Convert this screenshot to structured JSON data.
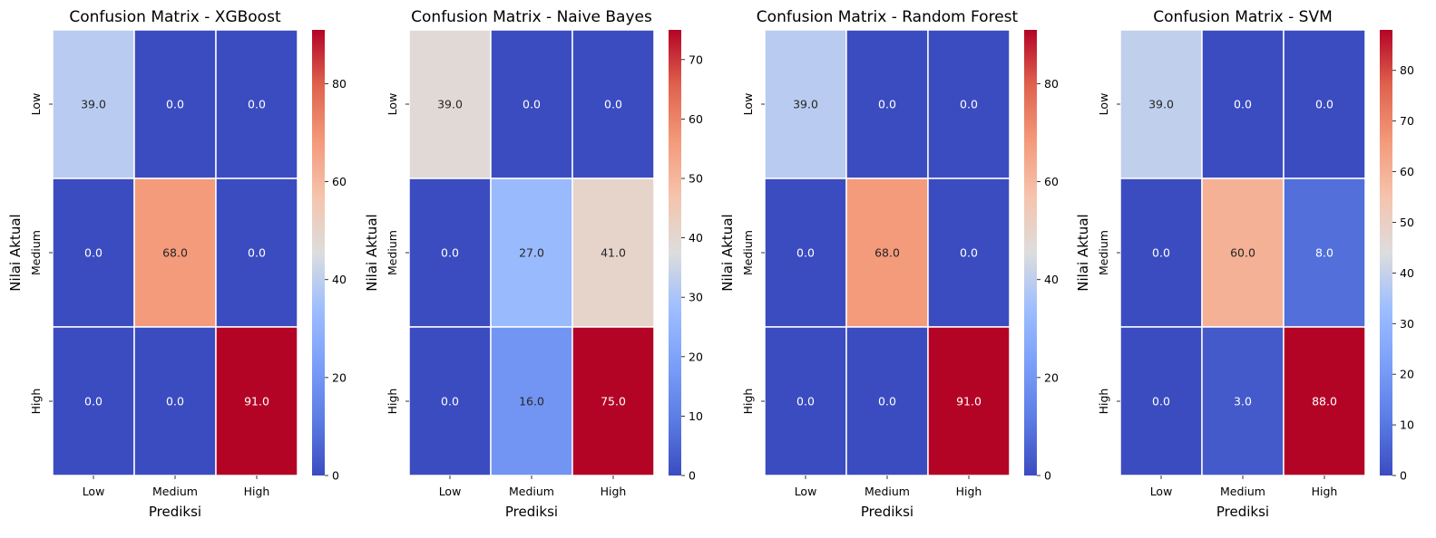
{
  "chart_data": [
    {
      "type": "heatmap",
      "title": "Confusion Matrix - XGBoost",
      "xlabel": "Prediksi",
      "ylabel": "Nilai Aktual",
      "x_categories": [
        "Low",
        "Medium",
        "High"
      ],
      "y_categories": [
        "Low",
        "Medium",
        "High"
      ],
      "values": [
        [
          39.0,
          0.0,
          0.0
        ],
        [
          0.0,
          68.0,
          0.0
        ],
        [
          0.0,
          0.0,
          91.0
        ]
      ],
      "annotations": [
        [
          "39.0",
          "0.0",
          "0.0"
        ],
        [
          "0.0",
          "68.0",
          "0.0"
        ],
        [
          "0.0",
          "0.0",
          "91.0"
        ]
      ],
      "colormap": "coolwarm",
      "colorbar_range": [
        0,
        91
      ],
      "colorbar_ticks": [
        0,
        20,
        40,
        60,
        80
      ]
    },
    {
      "type": "heatmap",
      "title": "Confusion Matrix - Naive Bayes",
      "xlabel": "Prediksi",
      "ylabel": "Nilai Aktual",
      "x_categories": [
        "Low",
        "Medium",
        "High"
      ],
      "y_categories": [
        "Low",
        "Medium",
        "High"
      ],
      "values": [
        [
          39.0,
          0.0,
          0.0
        ],
        [
          0.0,
          27.0,
          41.0
        ],
        [
          0.0,
          16.0,
          75.0
        ]
      ],
      "annotations": [
        [
          "39.0",
          "0.0",
          "0.0"
        ],
        [
          "0.0",
          "27.0",
          "41.0"
        ],
        [
          "0.0",
          "16.0",
          "75.0"
        ]
      ],
      "colormap": "coolwarm",
      "colorbar_range": [
        0,
        75
      ],
      "colorbar_ticks": [
        0,
        10,
        20,
        30,
        40,
        50,
        60,
        70
      ]
    },
    {
      "type": "heatmap",
      "title": "Confusion Matrix - Random Forest",
      "xlabel": "Prediksi",
      "ylabel": "Nilai Aktual",
      "x_categories": [
        "Low",
        "Medium",
        "High"
      ],
      "y_categories": [
        "Low",
        "Medium",
        "High"
      ],
      "values": [
        [
          39.0,
          0.0,
          0.0
        ],
        [
          0.0,
          68.0,
          0.0
        ],
        [
          0.0,
          0.0,
          91.0
        ]
      ],
      "annotations": [
        [
          "39.0",
          "0.0",
          "0.0"
        ],
        [
          "0.0",
          "68.0",
          "0.0"
        ],
        [
          "0.0",
          "0.0",
          "91.0"
        ]
      ],
      "colormap": "coolwarm",
      "colorbar_range": [
        0,
        91
      ],
      "colorbar_ticks": [
        0,
        20,
        40,
        60,
        80
      ]
    },
    {
      "type": "heatmap",
      "title": "Confusion Matrix - SVM",
      "xlabel": "Prediksi",
      "ylabel": "Nilai Aktual",
      "x_categories": [
        "Low",
        "Medium",
        "High"
      ],
      "y_categories": [
        "Low",
        "Medium",
        "High"
      ],
      "values": [
        [
          39.0,
          0.0,
          0.0
        ],
        [
          0.0,
          60.0,
          8.0
        ],
        [
          0.0,
          3.0,
          88.0
        ]
      ],
      "annotations": [
        [
          "39.0",
          "0.0",
          "0.0"
        ],
        [
          "0.0",
          "60.0",
          "8.0"
        ],
        [
          "0.0",
          "3.0",
          "88.0"
        ]
      ],
      "colormap": "coolwarm",
      "colorbar_range": [
        0,
        88
      ],
      "colorbar_ticks": [
        0,
        10,
        20,
        30,
        40,
        50,
        60,
        70,
        80
      ]
    }
  ]
}
